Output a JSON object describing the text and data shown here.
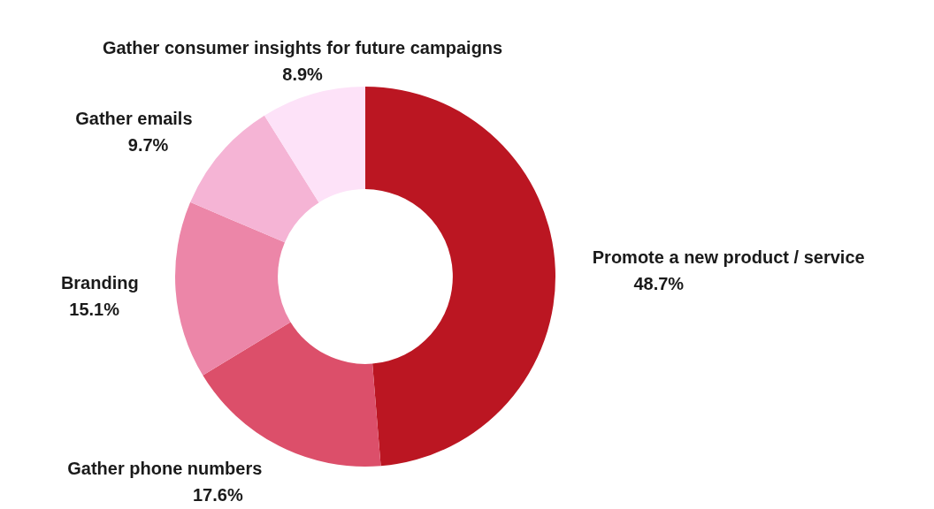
{
  "chart_data": {
    "type": "donut",
    "categories": [
      "Promote a new product / service",
      "Gather phone numbers",
      "Branding",
      "Gather emails",
      "Gather consumer insights for future campaigns"
    ],
    "values": [
      48.7,
      17.6,
      15.1,
      9.7,
      8.9
    ],
    "value_labels": [
      "48.7%",
      "17.6%",
      "15.1%",
      "9.7%",
      "8.9%"
    ],
    "colors": [
      "#bb1622",
      "#dc4f6a",
      "#ec86a8",
      "#f5b4d5",
      "#fde2f8"
    ],
    "legend": false
  }
}
